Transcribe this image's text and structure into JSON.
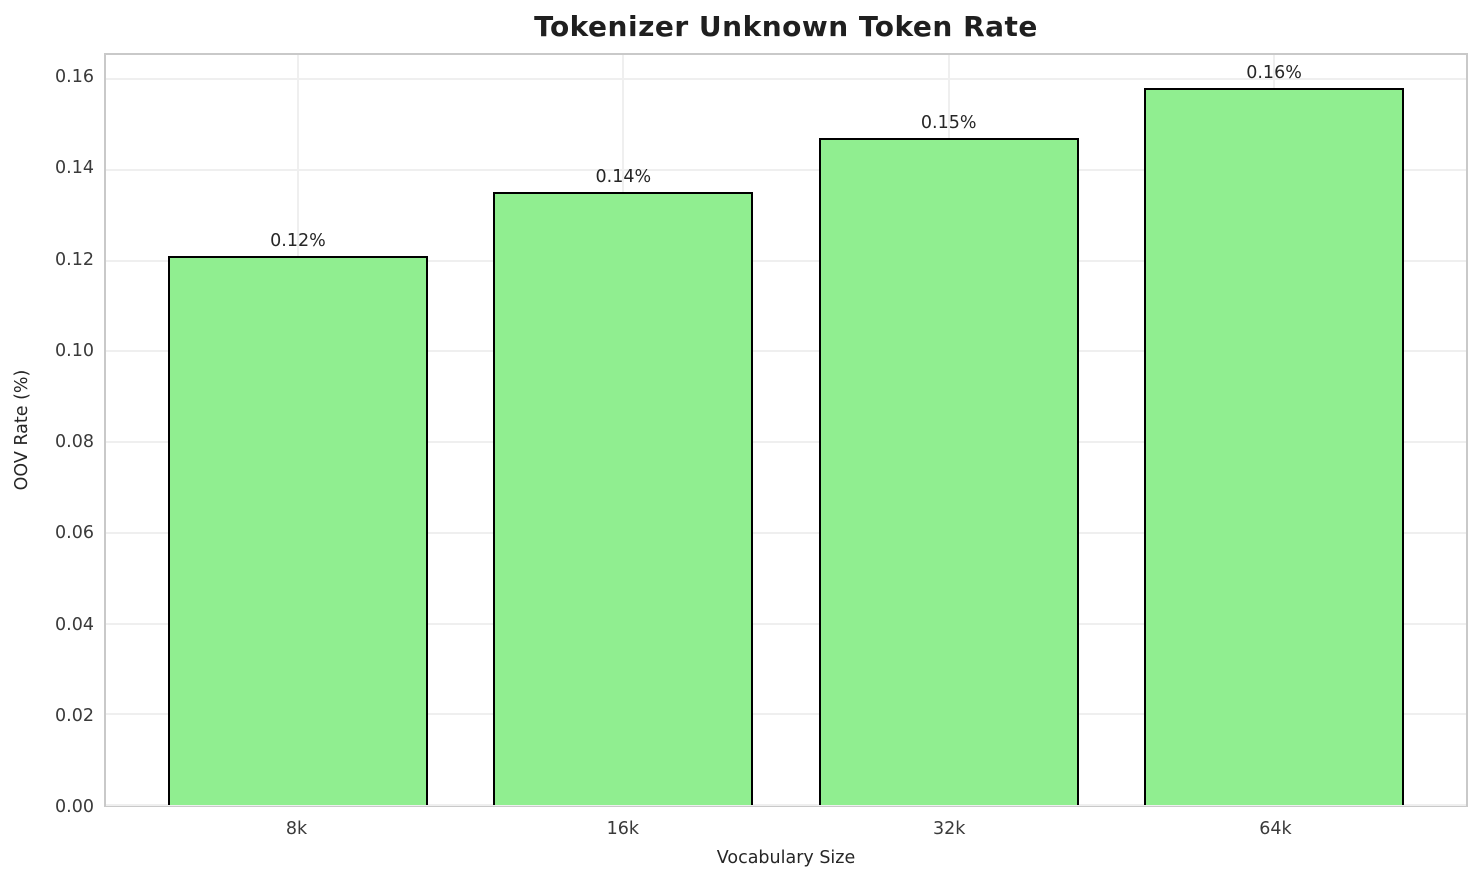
{
  "chart_data": {
    "type": "bar",
    "title": "Tokenizer Unknown Token Rate",
    "xlabel": "Vocabulary Size",
    "ylabel": "OOV Rate (%)",
    "categories": [
      "8k",
      "16k",
      "32k",
      "64k"
    ],
    "values": [
      0.121,
      0.135,
      0.147,
      0.158
    ],
    "bar_value_labels": [
      "0.12%",
      "0.14%",
      "0.15%",
      "0.16%"
    ],
    "yticks": [
      0.0,
      0.02,
      0.04,
      0.06,
      0.08,
      0.1,
      0.12,
      0.14,
      0.16
    ],
    "ytick_labels": [
      "0.00",
      "0.02",
      "0.04",
      "0.06",
      "0.08",
      "0.10",
      "0.12",
      "0.14",
      "0.16"
    ],
    "ylim": [
      0,
      0.1653
    ],
    "grid": true,
    "legend": null,
    "bar_width_fraction": 0.8,
    "colors": {
      "bar_fill": "#90EE90",
      "bar_edge": "#000000",
      "gridline": "#efefef",
      "spine": "#c9c9c9",
      "title_text": "#1f1f1f",
      "tick_text": "#3a3a3a"
    }
  }
}
